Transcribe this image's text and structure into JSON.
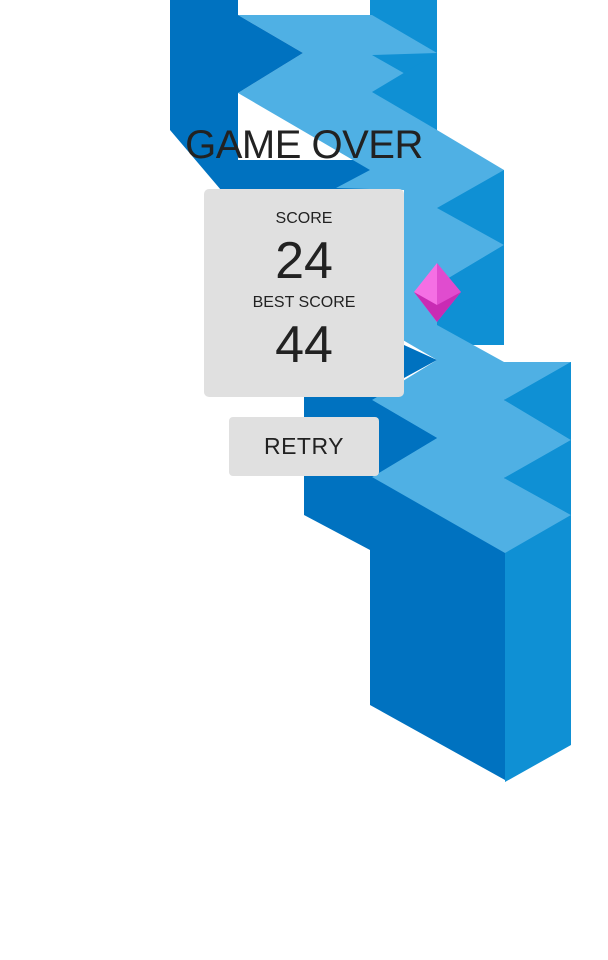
{
  "game_over": {
    "title": "GAME OVER"
  },
  "score_panel": {
    "score_label": "SCORE",
    "score_value": "24",
    "best_label": "BEST SCORE",
    "best_value": "44"
  },
  "retry": {
    "label": "RETRY"
  },
  "colors": {
    "path_top": "#4fb0e4",
    "path_left": "#0072c0",
    "path_right": "#0f90d4",
    "gem_light": "#f56fe4",
    "gem_dark": "#d82fc3"
  },
  "icons": {
    "gem": "pink-diamond-gem-icon"
  }
}
